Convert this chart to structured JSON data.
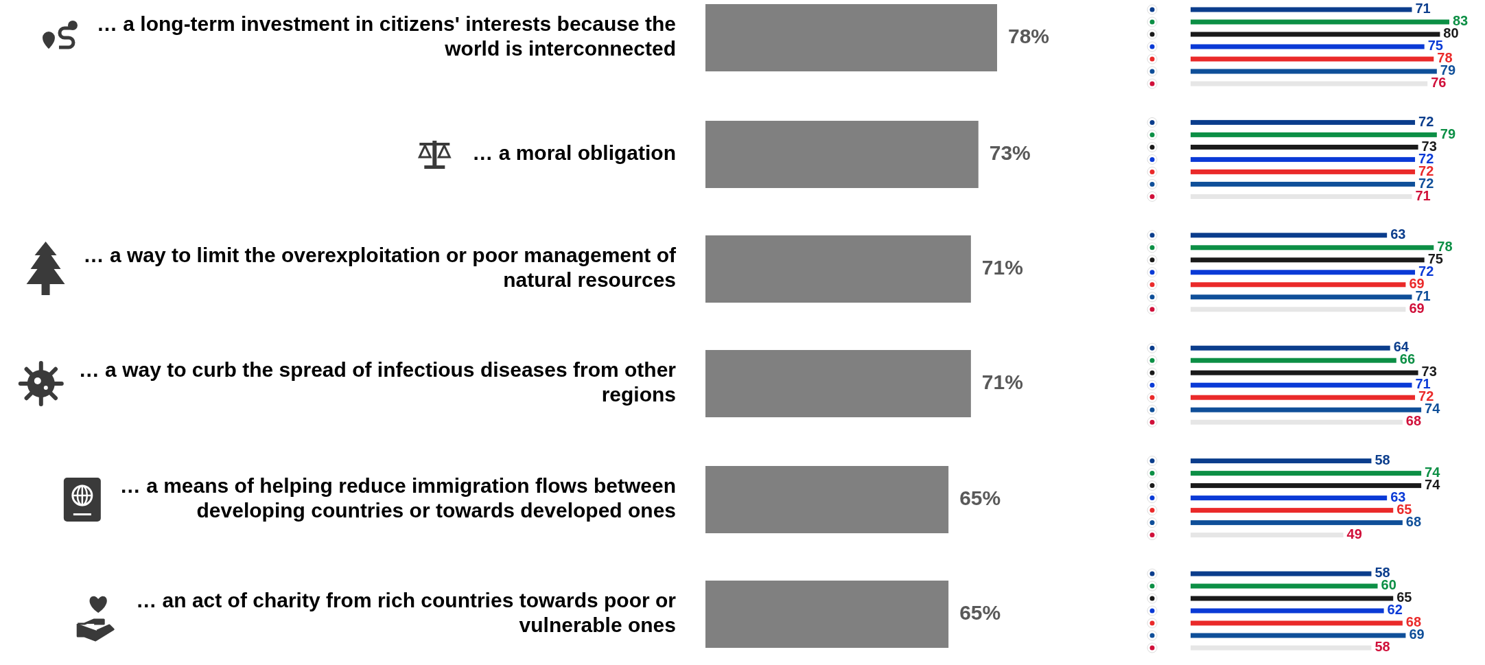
{
  "chart_data": [
    {
      "type": "bar",
      "orientation": "horizontal",
      "categories": [
        "… a long-term investment in citizens' interests because the world is interconnected",
        "… a moral obligation",
        "… a way to limit the overexploitation or poor management of natural resources",
        "… a way to curb the spread of infectious diseases from other regions",
        "… a means of helping reduce immigration flows between developing countries or towards developed ones",
        "… an act of charity from rich countries towards poor or vulnerable ones"
      ],
      "values": [
        78,
        73,
        71,
        71,
        65,
        65
      ],
      "value_labels": [
        "78%",
        "73%",
        "71%",
        "71%",
        "65%",
        "65%"
      ],
      "color": "#808080"
    },
    {
      "type": "bar",
      "orientation": "horizontal",
      "categories": [
        null,
        null,
        null,
        null,
        null,
        null
      ],
      "data_labels": true,
      "series": [
        {
          "color": "#0b3d8c",
          "values": [
            71,
            72,
            63,
            64,
            58,
            58
          ]
        },
        {
          "color": "#0c8f45",
          "values": [
            83,
            79,
            78,
            66,
            74,
            60
          ]
        },
        {
          "color": "#1a1a1a",
          "values": [
            80,
            73,
            75,
            73,
            74,
            65
          ]
        },
        {
          "color": "#0a3ad6",
          "values": [
            75,
            72,
            72,
            71,
            63,
            62
          ]
        },
        {
          "color": "#ea2a2a",
          "values": [
            78,
            72,
            69,
            72,
            65,
            68
          ]
        },
        {
          "color": "#0f4f99",
          "values": [
            79,
            72,
            71,
            74,
            68,
            69
          ]
        },
        {
          "color": "#e6e6e6",
          "values": [
            76,
            71,
            69,
            68,
            49,
            58
          ]
        }
      ]
    }
  ]
}
